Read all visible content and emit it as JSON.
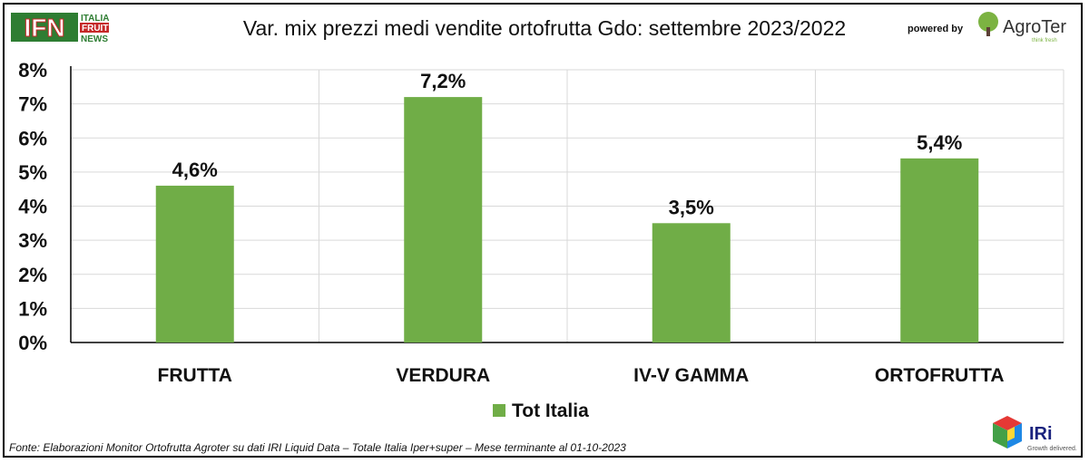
{
  "header": {
    "title": "Var. mix prezzi medi vendite ortofrutta Gdo: settembre 2023/2022",
    "powered_by": "powered by",
    "ifn_logo": {
      "letters": "IFN",
      "line1": "ITALIA",
      "line2": "FRUIT",
      "line3": "NEWS"
    },
    "agroter_logo": {
      "name": "AgroTer",
      "tagline": "think fresh"
    }
  },
  "footer": {
    "source": "Fonte: Elaborazioni Monitor Ortofrutta Agroter su dati IRI Liquid Data – Totale Italia Iper+super – Mese terminante al 01-10-2023",
    "iri_logo": {
      "name": "IRi",
      "tagline": "Growth delivered."
    }
  },
  "colors": {
    "bar": "#70AD47",
    "grid": "#D9D9D9",
    "text": "#111111"
  },
  "chart_data": {
    "type": "bar",
    "categories": [
      "FRUTTA",
      "VERDURA",
      "IV-V GAMMA",
      "ORTOFRUTTA"
    ],
    "series": [
      {
        "name": "Tot Italia",
        "values": [
          4.6,
          7.2,
          3.5,
          5.4
        ],
        "labels": [
          "4,6%",
          "7,2%",
          "3,5%",
          "5,4%"
        ]
      }
    ],
    "ylim": [
      0,
      8
    ],
    "yticks": [
      "0%",
      "1%",
      "2%",
      "3%",
      "4%",
      "5%",
      "6%",
      "7%",
      "8%"
    ],
    "grid": true,
    "legend": "bottom-center"
  }
}
